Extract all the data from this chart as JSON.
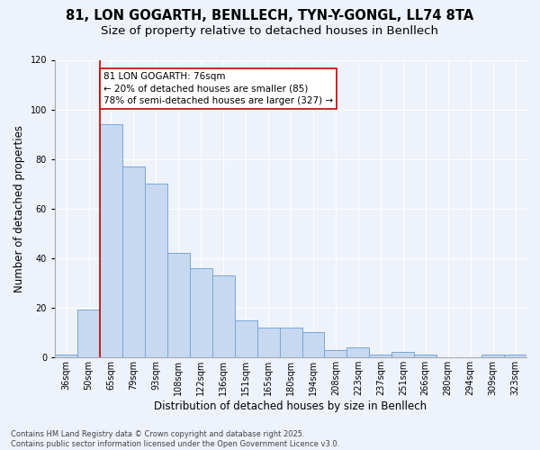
{
  "title1": "81, LON GOGARTH, BENLLECH, TYN-Y-GONGL, LL74 8TA",
  "title2": "Size of property relative to detached houses in Benllech",
  "xlabel": "Distribution of detached houses by size in Benllech",
  "ylabel": "Number of detached properties",
  "categories": [
    "36sqm",
    "50sqm",
    "65sqm",
    "79sqm",
    "93sqm",
    "108sqm",
    "122sqm",
    "136sqm",
    "151sqm",
    "165sqm",
    "180sqm",
    "194sqm",
    "208sqm",
    "223sqm",
    "237sqm",
    "251sqm",
    "266sqm",
    "280sqm",
    "294sqm",
    "309sqm",
    "323sqm"
  ],
  "values": [
    1,
    19,
    94,
    77,
    70,
    42,
    36,
    33,
    15,
    12,
    12,
    10,
    3,
    4,
    1,
    2,
    1,
    0,
    0,
    1,
    1
  ],
  "bar_color": "#c6d9f1",
  "bar_edge_color": "#7aa6d4",
  "vline_x_idx": 2,
  "vline_color": "#cc0000",
  "annotation_text": "81 LON GOGARTH: 76sqm\n← 20% of detached houses are smaller (85)\n78% of semi-detached houses are larger (327) →",
  "annotation_box_color": "#ffffff",
  "annotation_box_edge": "#cc0000",
  "ylim": [
    0,
    120
  ],
  "yticks": [
    0,
    20,
    40,
    60,
    80,
    100,
    120
  ],
  "background_color": "#eef2fb",
  "footer": "Contains HM Land Registry data © Crown copyright and database right 2025.\nContains public sector information licensed under the Open Government Licence v3.0.",
  "title_fontsize": 10.5,
  "subtitle_fontsize": 9.5,
  "xlabel_fontsize": 8.5,
  "ylabel_fontsize": 8.5,
  "tick_fontsize": 7,
  "footer_fontsize": 6,
  "annot_fontsize": 7.5
}
